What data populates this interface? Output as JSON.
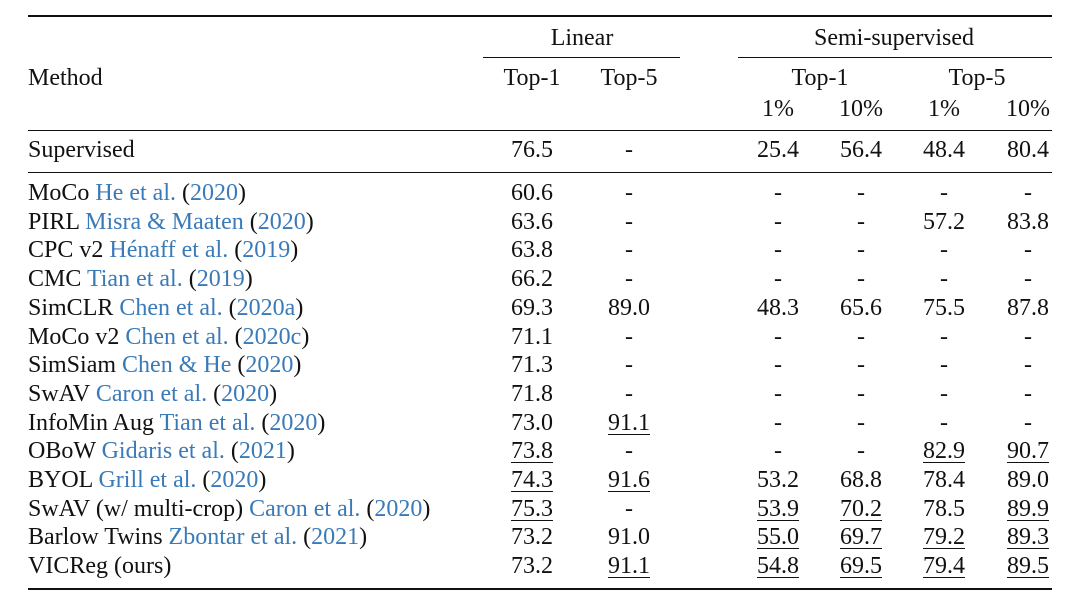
{
  "headers": {
    "method": "Method",
    "linear": "Linear",
    "semi": "Semi-supervised",
    "top1": "Top-1",
    "top5": "Top-5",
    "pct1": "1%",
    "pct10": "10%"
  },
  "rows": [
    {
      "name": "Supervised",
      "authors": "",
      "year": "",
      "suffix": "",
      "cells": [
        {
          "v": "76.5"
        },
        {
          "v": "-"
        },
        {
          "v": "25.4"
        },
        {
          "v": "56.4"
        },
        {
          "v": "48.4"
        },
        {
          "v": "80.4"
        }
      ]
    },
    {
      "name": "MoCo",
      "authors": "He et al.",
      "year": "2020",
      "suffix": "",
      "cells": [
        {
          "v": "60.6"
        },
        {
          "v": "-"
        },
        {
          "v": "-"
        },
        {
          "v": "-"
        },
        {
          "v": "-"
        },
        {
          "v": "-"
        }
      ]
    },
    {
      "name": "PIRL",
      "authors": "Misra & Maaten",
      "year": "2020",
      "suffix": "",
      "cells": [
        {
          "v": "63.6"
        },
        {
          "v": "-"
        },
        {
          "v": "-"
        },
        {
          "v": "-"
        },
        {
          "v": "57.2"
        },
        {
          "v": "83.8"
        }
      ]
    },
    {
      "name": "CPC v2",
      "authors": "Hénaff et al.",
      "year": "2019",
      "suffix": "",
      "cells": [
        {
          "v": "63.8"
        },
        {
          "v": "-"
        },
        {
          "v": "-"
        },
        {
          "v": "-"
        },
        {
          "v": "-"
        },
        {
          "v": "-"
        }
      ]
    },
    {
      "name": "CMC",
      "authors": "Tian et al.",
      "year": "2019",
      "suffix": "",
      "cells": [
        {
          "v": "66.2"
        },
        {
          "v": "-"
        },
        {
          "v": "-"
        },
        {
          "v": "-"
        },
        {
          "v": "-"
        },
        {
          "v": "-"
        }
      ]
    },
    {
      "name": "SimCLR",
      "authors": "Chen et al.",
      "year": "2020a",
      "suffix": "",
      "cells": [
        {
          "v": "69.3"
        },
        {
          "v": "89.0"
        },
        {
          "v": "48.3"
        },
        {
          "v": "65.6"
        },
        {
          "v": "75.5"
        },
        {
          "v": "87.8"
        }
      ]
    },
    {
      "name": "MoCo v2",
      "authors": "Chen et al.",
      "year": "2020c",
      "suffix": "",
      "cells": [
        {
          "v": "71.1"
        },
        {
          "v": "-"
        },
        {
          "v": "-"
        },
        {
          "v": "-"
        },
        {
          "v": "-"
        },
        {
          "v": "-"
        }
      ]
    },
    {
      "name": "SimSiam",
      "authors": "Chen & He",
      "year": "2020",
      "suffix": "",
      "cells": [
        {
          "v": "71.3"
        },
        {
          "v": "-"
        },
        {
          "v": "-"
        },
        {
          "v": "-"
        },
        {
          "v": "-"
        },
        {
          "v": "-"
        }
      ]
    },
    {
      "name": "SwAV",
      "authors": "Caron et al.",
      "year": "2020",
      "suffix": "",
      "cells": [
        {
          "v": "71.8"
        },
        {
          "v": "-"
        },
        {
          "v": "-"
        },
        {
          "v": "-"
        },
        {
          "v": "-"
        },
        {
          "v": "-"
        }
      ]
    },
    {
      "name": "InfoMin Aug",
      "authors": "Tian et al.",
      "year": "2020",
      "suffix": "",
      "cells": [
        {
          "v": "73.0"
        },
        {
          "v": "91.1",
          "u": true
        },
        {
          "v": "-"
        },
        {
          "v": "-"
        },
        {
          "v": "-"
        },
        {
          "v": "-"
        }
      ]
    },
    {
      "name": "OBoW",
      "authors": "Gidaris et al.",
      "year": "2021",
      "suffix": "",
      "cells": [
        {
          "v": "73.8",
          "u": true
        },
        {
          "v": "-"
        },
        {
          "v": "-"
        },
        {
          "v": "-"
        },
        {
          "v": "82.9",
          "u": true
        },
        {
          "v": "90.7",
          "u": true
        }
      ]
    },
    {
      "name": "BYOL",
      "authors": "Grill et al.",
      "year": "2020",
      "suffix": "",
      "cells": [
        {
          "v": "74.3",
          "u": true
        },
        {
          "v": "91.6",
          "u": true
        },
        {
          "v": "53.2"
        },
        {
          "v": "68.8"
        },
        {
          "v": "78.4"
        },
        {
          "v": "89.0"
        }
      ]
    },
    {
      "name": "SwAV (w/ multi-crop)",
      "authors": "Caron et al.",
      "year": "2020",
      "suffix": "",
      "cells": [
        {
          "v": "75.3",
          "u": true
        },
        {
          "v": "-"
        },
        {
          "v": "53.9",
          "u": true
        },
        {
          "v": "70.2",
          "u": true
        },
        {
          "v": "78.5"
        },
        {
          "v": "89.9",
          "u": true
        }
      ]
    },
    {
      "name": "Barlow Twins",
      "authors": "Zbontar et al.",
      "year": "2021",
      "suffix": "",
      "cells": [
        {
          "v": "73.2"
        },
        {
          "v": "91.0"
        },
        {
          "v": "55.0",
          "u": true
        },
        {
          "v": "69.7",
          "u": true
        },
        {
          "v": "79.2",
          "u": true
        },
        {
          "v": "89.3",
          "u": true
        }
      ]
    },
    {
      "name": "VICReg (ours)",
      "authors": "",
      "year": "",
      "suffix": "",
      "cells": [
        {
          "v": "73.2"
        },
        {
          "v": "91.1",
          "u": true
        },
        {
          "v": "54.8",
          "u": true
        },
        {
          "v": "69.5",
          "u": true
        },
        {
          "v": "79.4",
          "u": true
        },
        {
          "v": "89.5",
          "u": true
        }
      ]
    }
  ]
}
